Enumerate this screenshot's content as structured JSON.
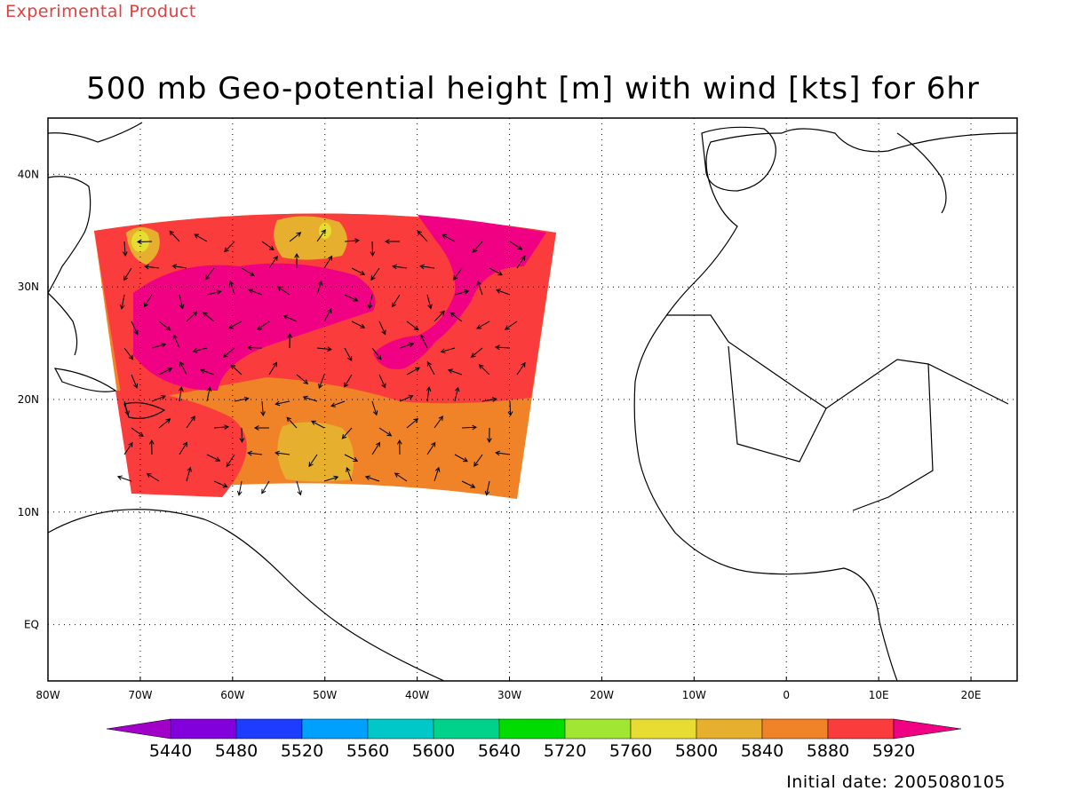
{
  "banner": "Experimental Product",
  "title": "500 mb Geo-potential height [m] with wind [kts] for 6hr",
  "footer": {
    "label": "Initial date:",
    "value": "2005080105"
  },
  "map": {
    "lon_range": [
      -80,
      25
    ],
    "lat_range": [
      -5,
      45
    ],
    "lon_ticks": [
      {
        "v": -80,
        "label": "80W"
      },
      {
        "v": -70,
        "label": "70W"
      },
      {
        "v": -60,
        "label": "60W"
      },
      {
        "v": -50,
        "label": "50W"
      },
      {
        "v": -40,
        "label": "40W"
      },
      {
        "v": -30,
        "label": "30W"
      },
      {
        "v": -20,
        "label": "20W"
      },
      {
        "v": -10,
        "label": "10W"
      },
      {
        "v": 0,
        "label": "0"
      },
      {
        "v": 10,
        "label": "10E"
      },
      {
        "v": 20,
        "label": "20E"
      }
    ],
    "lat_ticks": [
      {
        "v": 40,
        "label": "40N"
      },
      {
        "v": 30,
        "label": "30N"
      },
      {
        "v": 20,
        "label": "20N"
      },
      {
        "v": 10,
        "label": "10N"
      },
      {
        "v": 0,
        "label": "EQ"
      }
    ],
    "grid": "dotted"
  },
  "colorbar": {
    "levels": [
      "5440",
      "5480",
      "5520",
      "5560",
      "5600",
      "5640",
      "5720",
      "5760",
      "5800",
      "5840",
      "5880",
      "5920"
    ],
    "colors": [
      "#a000c8",
      "#8200dc",
      "#1e3cff",
      "#00a0ff",
      "#00c8c8",
      "#00d28c",
      "#00dc00",
      "#a0e632",
      "#e6dc32",
      "#e6af2d",
      "#f08228",
      "#fa3c3c",
      "#f00082"
    ]
  }
}
